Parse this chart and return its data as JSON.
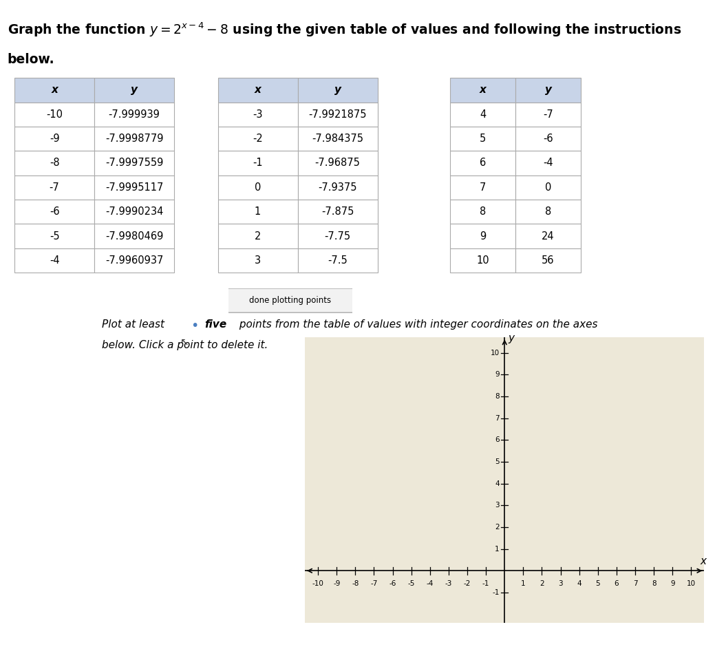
{
  "table1": {
    "headers": [
      "x",
      "y"
    ],
    "rows": [
      [
        "-10",
        "-7.999939"
      ],
      [
        "-9",
        "-7.9998779"
      ],
      [
        "-8",
        "-7.9997559"
      ],
      [
        "-7",
        "-7.9995117"
      ],
      [
        "-6",
        "-7.9990234"
      ],
      [
        "-5",
        "-7.9980469"
      ],
      [
        "-4",
        "-7.9960937"
      ]
    ]
  },
  "table2": {
    "headers": [
      "x",
      "y"
    ],
    "rows": [
      [
        "-3",
        "-7.9921875"
      ],
      [
        "-2",
        "-7.984375"
      ],
      [
        "-1",
        "-7.96875"
      ],
      [
        "0",
        "-7.9375"
      ],
      [
        "1",
        "-7.875"
      ],
      [
        "2",
        "-7.75"
      ],
      [
        "3",
        "-7.5"
      ]
    ]
  },
  "table3": {
    "headers": [
      "x",
      "y"
    ],
    "rows": [
      [
        "4",
        "-7"
      ],
      [
        "5",
        "-6"
      ],
      [
        "6",
        "-4"
      ],
      [
        "7",
        "0"
      ],
      [
        "8",
        "8"
      ],
      [
        "9",
        "24"
      ],
      [
        "10",
        "56"
      ]
    ]
  },
  "button_text": "done plotting points",
  "table_header_bg": "#c8d4e8",
  "table_cell_bg": "#ffffff",
  "graph": {
    "xlim": [
      -10,
      10
    ],
    "ylim": [
      -2,
      10
    ],
    "xticks": [
      -10,
      -9,
      -8,
      -7,
      -6,
      -5,
      -4,
      -3,
      -2,
      -1,
      1,
      2,
      3,
      4,
      5,
      6,
      7,
      8,
      9,
      10
    ],
    "yticks": [
      -1,
      1,
      2,
      3,
      4,
      5,
      6,
      7,
      8,
      9,
      10
    ],
    "xlabel": "x",
    "ylabel": "y",
    "bg_color": "#ede8d8"
  },
  "point_color": "#4a7fc1",
  "cursor_color": "#555555",
  "fig_bg": "#ffffff"
}
